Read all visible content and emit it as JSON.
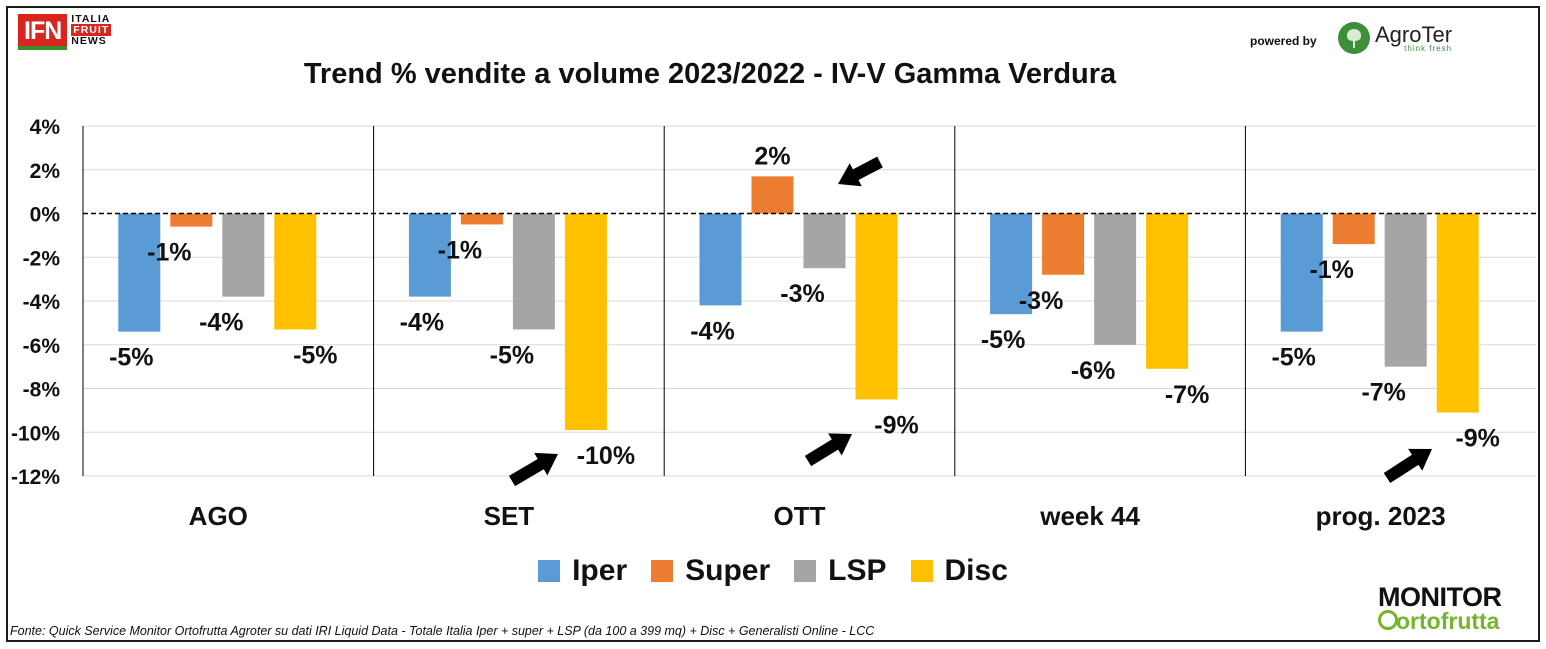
{
  "header": {
    "ifn_logo": {
      "mark": "IFN",
      "line1": "ITALIA",
      "line2": "FRUIT",
      "line3": "NEWS"
    },
    "powered_by": "powered by",
    "agroter": {
      "name": "AgroTer",
      "tagline": "think fresh"
    },
    "monitor": {
      "line1": "MONITOR",
      "line2": "ortofrutta"
    }
  },
  "footer": {
    "source": "Fonte: Quick Service Monitor Ortofrutta Agroter su dati IRI Liquid Data - Totale Italia Iper + super + LSP (da 100 a 399 mq) + Disc + Generalisti Online - LCC"
  },
  "chart_data": {
    "type": "bar",
    "title": "Trend % vendite a volume 2023/2022 - IV-V Gamma Verdura",
    "categories": [
      "AGO",
      "SET",
      "OTT",
      "week 44",
      "prog. 2023"
    ],
    "series": [
      {
        "name": "Iper",
        "color": "#5b9bd5",
        "values": [
          -5.4,
          -3.8,
          -4.2,
          -4.6,
          -5.4
        ],
        "labels": [
          "-5%",
          "-4%",
          "-4%",
          "-5%",
          "-5%"
        ]
      },
      {
        "name": "Super",
        "color": "#ed7d31",
        "values": [
          -0.6,
          -0.5,
          1.7,
          -2.8,
          -1.4
        ],
        "labels": [
          "-1%",
          "-1%",
          "2%",
          "-3%",
          "-1%"
        ]
      },
      {
        "name": "LSP",
        "color": "#a5a5a5",
        "values": [
          -3.8,
          -5.3,
          -2.5,
          -6.0,
          -7.0
        ],
        "labels": [
          "-4%",
          "-5%",
          "-3%",
          "-6%",
          "-7%"
        ]
      },
      {
        "name": "Disc",
        "color": "#ffc000",
        "values": [
          -5.3,
          -9.9,
          -8.5,
          -7.1,
          -9.1
        ],
        "labels": [
          "-5%",
          "-10%",
          "-9%",
          "-7%",
          "-9%"
        ]
      }
    ],
    "ylim": [
      -12,
      4
    ],
    "yticks": [
      4,
      2,
      0,
      -2,
      -4,
      -6,
      -8,
      -10,
      -12
    ],
    "ytick_labels": [
      "4%",
      "2%",
      "0%",
      "-2%",
      "-4%",
      "-6%",
      "-8%",
      "-10%",
      "-12%"
    ],
    "xlabel": "",
    "ylabel": "",
    "grid": true,
    "legend": "bottom",
    "arrows_point_to": [
      "SET Disc",
      "OTT Super",
      "OTT Disc",
      "prog. 2023 Disc"
    ]
  }
}
